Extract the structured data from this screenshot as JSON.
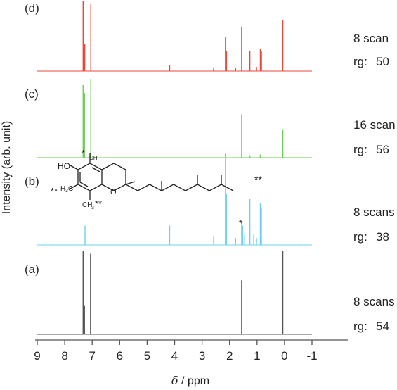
{
  "chart_data": {
    "type": "line",
    "xlabel_symbol": "δ",
    "xlabel_rest": " / ppm",
    "ylabel": "Intensity (arb. unit)",
    "xlim": [
      9,
      -1
    ],
    "xticks": [
      9,
      8,
      7,
      6,
      5,
      4,
      3,
      2,
      1,
      0,
      -1
    ],
    "tick_labels": [
      "9",
      "8",
      "7",
      "6",
      "5",
      "4",
      "3",
      "2",
      "1",
      "0",
      "-1"
    ],
    "series": [
      {
        "name": "(d)",
        "color": "#e8483a",
        "scan_label": "8 scan",
        "rg_label": "rg:",
        "rg_value": "50",
        "peaks": [
          [
            7.33,
            1.0
          ],
          [
            7.27,
            0.38
          ],
          [
            7.05,
            0.95
          ],
          [
            4.18,
            0.08
          ],
          [
            2.58,
            0.05
          ],
          [
            2.15,
            0.48
          ],
          [
            2.11,
            0.28
          ],
          [
            1.78,
            0.04
          ],
          [
            1.56,
            0.63
          ],
          [
            1.26,
            0.28
          ],
          [
            1.02,
            0.06
          ],
          [
            0.88,
            0.32
          ],
          [
            0.84,
            0.28
          ],
          [
            0.06,
            0.72
          ]
        ]
      },
      {
        "name": "(c)",
        "color": "#6dcc5a",
        "scan_label": "16 scan",
        "rg_label": "rg:",
        "rg_value": "56",
        "peaks": [
          [
            7.33,
            0.92
          ],
          [
            7.28,
            0.82
          ],
          [
            7.05,
            1.0
          ],
          [
            2.15,
            0.05
          ],
          [
            1.56,
            0.55
          ],
          [
            1.26,
            0.03
          ],
          [
            0.88,
            0.04
          ],
          [
            0.06,
            0.36
          ]
        ]
      },
      {
        "name": "(b)",
        "color": "#6fd0f0",
        "scan_label": "8 scans",
        "rg_label": "rg:",
        "rg_value": "38",
        "annotations": [
          "*",
          "**"
        ],
        "peaks": [
          [
            7.26,
            0.22
          ],
          [
            4.18,
            0.22
          ],
          [
            2.58,
            0.1
          ],
          [
            2.15,
            1.0
          ],
          [
            2.11,
            0.58
          ],
          [
            1.78,
            0.08
          ],
          [
            1.56,
            0.28
          ],
          [
            1.52,
            0.22
          ],
          [
            1.45,
            0.12
          ],
          [
            1.26,
            0.52
          ],
          [
            1.12,
            0.12
          ],
          [
            1.02,
            0.08
          ],
          [
            0.88,
            0.48
          ],
          [
            0.84,
            0.42
          ]
        ]
      },
      {
        "name": "(a)",
        "color": "#555555",
        "scan_label": "8 scans",
        "rg_label": "rg:",
        "rg_value": "54",
        "peaks": [
          [
            7.33,
            1.0
          ],
          [
            7.28,
            0.35
          ],
          [
            7.06,
            0.97
          ],
          [
            1.56,
            0.65
          ],
          [
            0.06,
            1.0
          ]
        ]
      }
    ],
    "structure_labels": {
      "star_top": "*",
      "ho": "HO",
      "ch3": "CH",
      "sub3": "3",
      "double_star": "**",
      "h3c": "H",
      "c_after": "C"
    }
  }
}
